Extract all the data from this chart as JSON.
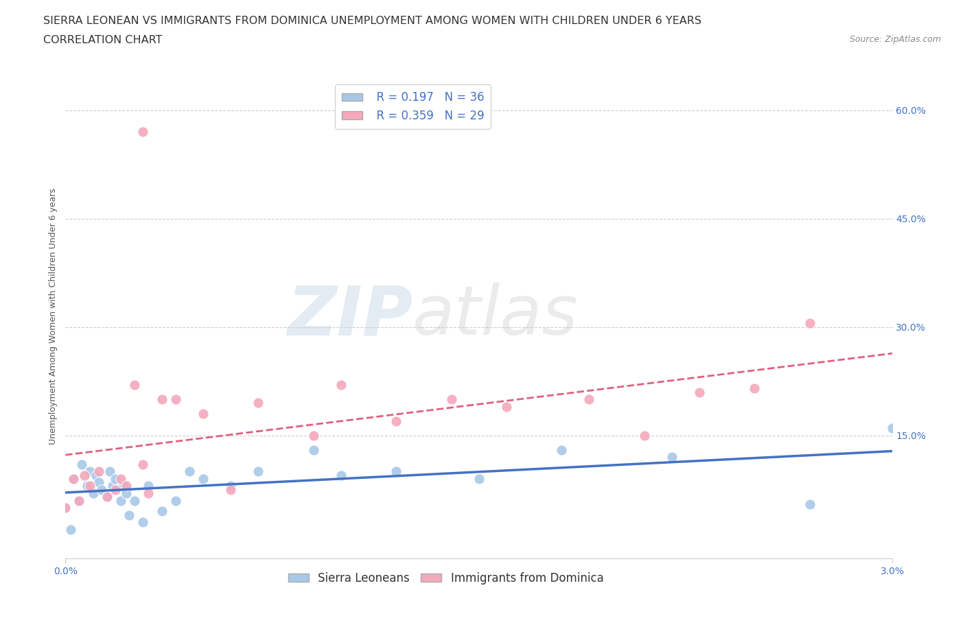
{
  "title_line1": "SIERRA LEONEAN VS IMMIGRANTS FROM DOMINICA UNEMPLOYMENT AMONG WOMEN WITH CHILDREN UNDER 6 YEARS",
  "title_line2": "CORRELATION CHART",
  "source": "Source: ZipAtlas.com",
  "xlabel_ticks": [
    "0.0%",
    "3.0%"
  ],
  "ylabel_ticks_right": [
    "60.0%",
    "45.0%",
    "30.0%",
    "15.0%"
  ],
  "xlim": [
    0.0,
    0.03
  ],
  "ylim": [
    -0.02,
    0.65
  ],
  "ylabel": "Unemployment Among Women with Children Under 6 years",
  "sierra_R": 0.197,
  "sierra_N": 36,
  "dominica_R": 0.359,
  "dominica_N": 29,
  "sierra_color": "#a8c8e8",
  "dominica_color": "#f4a8bc",
  "sierra_line_color": "#4472c4",
  "dominica_line_color": "#e06080",
  "legend_label_sierra": "Sierra Leoneans",
  "legend_label_dominica": "Immigrants from Dominica",
  "watermark_zip": "ZIP",
  "watermark_atlas": "atlas",
  "sierra_x": [
    0.0,
    0.0002,
    0.0003,
    0.0005,
    0.0006,
    0.0008,
    0.0009,
    0.001,
    0.0011,
    0.0012,
    0.0013,
    0.0015,
    0.0016,
    0.0017,
    0.0018,
    0.002,
    0.0021,
    0.0022,
    0.0023,
    0.0025,
    0.0028,
    0.003,
    0.0035,
    0.004,
    0.0045,
    0.005,
    0.006,
    0.007,
    0.009,
    0.01,
    0.012,
    0.015,
    0.018,
    0.022,
    0.027,
    0.03
  ],
  "sierra_y": [
    0.05,
    0.02,
    0.09,
    0.06,
    0.11,
    0.08,
    0.1,
    0.07,
    0.095,
    0.085,
    0.075,
    0.065,
    0.1,
    0.08,
    0.09,
    0.06,
    0.08,
    0.07,
    0.04,
    0.06,
    0.03,
    0.08,
    0.045,
    0.06,
    0.1,
    0.09,
    0.08,
    0.1,
    0.13,
    0.095,
    0.1,
    0.09,
    0.13,
    0.12,
    0.055,
    0.16
  ],
  "dominica_x": [
    0.0,
    0.0003,
    0.0005,
    0.0007,
    0.0009,
    0.0012,
    0.0015,
    0.0018,
    0.002,
    0.0022,
    0.0025,
    0.0028,
    0.003,
    0.0035,
    0.004,
    0.005,
    0.006,
    0.007,
    0.009,
    0.01,
    0.012,
    0.014,
    0.016,
    0.019,
    0.021,
    0.023,
    0.025,
    0.027,
    0.0028
  ],
  "dominica_y": [
    0.05,
    0.09,
    0.06,
    0.095,
    0.08,
    0.1,
    0.065,
    0.075,
    0.09,
    0.08,
    0.22,
    0.11,
    0.07,
    0.2,
    0.2,
    0.18,
    0.075,
    0.195,
    0.15,
    0.22,
    0.17,
    0.2,
    0.19,
    0.2,
    0.15,
    0.21,
    0.215,
    0.305,
    0.57
  ],
  "grid_color": "#cccccc",
  "background_color": "#ffffff",
  "title_fontsize": 11.5,
  "axis_label_fontsize": 9,
  "tick_fontsize": 10,
  "legend_fontsize": 12,
  "source_fontsize": 9
}
